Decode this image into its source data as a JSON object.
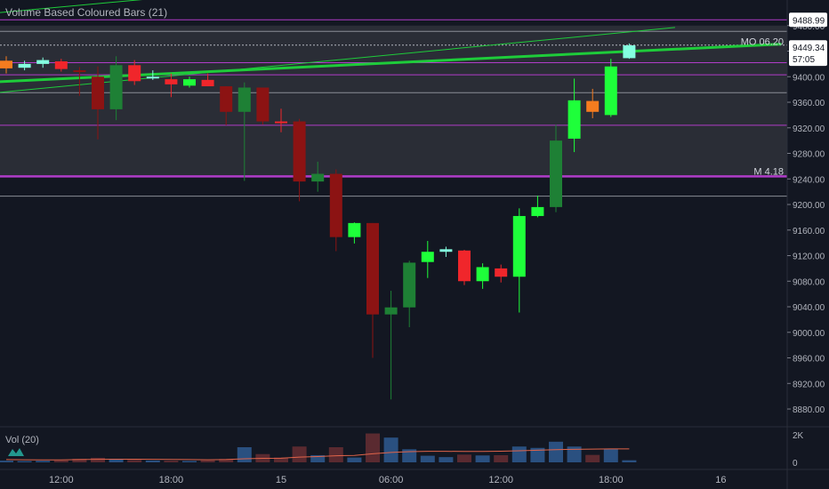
{
  "indicator_title": "Volume Based Coloured Bars (21)",
  "volume_title": "Vol (20)",
  "chart_data": {
    "type": "candlestick",
    "title": "Volume Based Coloured Bars (21)",
    "y_ticks": [
      8880,
      8920,
      8960,
      9000,
      9040,
      9080,
      9120,
      9160,
      9200,
      9240,
      9280,
      9320,
      9360,
      9400,
      9440,
      9480
    ],
    "y_tick_labels": [
      "8880.00",
      "8920.00",
      "8960.00",
      "9000.00",
      "9040.00",
      "9080.00",
      "9120.00",
      "9160.00",
      "9200.00",
      "9240.00",
      "9280.00",
      "9320.00",
      "9360.00",
      "9400.00",
      "9440.00",
      "9480.00"
    ],
    "ylim": [
      8855,
      9520
    ],
    "x_tick_labels": [
      {
        "label": "12:00",
        "bar": 3
      },
      {
        "label": "18:00",
        "bar": 9
      },
      {
        "label": "15",
        "bar": 15
      },
      {
        "label": "06:00",
        "bar": 21
      },
      {
        "label": "12:00",
        "bar": 27
      },
      {
        "label": "18:00",
        "bar": 33
      },
      {
        "label": "16",
        "bar": 39
      }
    ],
    "candles": [
      {
        "o": 9425,
        "h": 9432,
        "l": 9405,
        "c": 9413,
        "color": "#f57c1f"
      },
      {
        "o": 9420,
        "h": 9425,
        "l": 9410,
        "c": 9414,
        "color": "#84ffe0"
      },
      {
        "o": 9420,
        "h": 9430,
        "l": 9414,
        "c": 9426,
        "color": "#84ffe0"
      },
      {
        "o": 9424,
        "h": 9428,
        "l": 9408,
        "c": 9412,
        "color": "#f0262b"
      },
      {
        "o": 9410,
        "h": 9415,
        "l": 9370,
        "c": 9408,
        "color": "#8c1313"
      },
      {
        "o": 9400,
        "h": 9416,
        "l": 9302,
        "c": 9349,
        "color": "#8c1313"
      },
      {
        "o": 9349,
        "h": 9432,
        "l": 9332,
        "c": 9418,
        "color": "#1e8035"
      },
      {
        "o": 9418,
        "h": 9426,
        "l": 9387,
        "c": 9393,
        "color": "#f0262b"
      },
      {
        "o": 9400,
        "h": 9410,
        "l": 9395,
        "c": 9398,
        "color": "#84ffe0"
      },
      {
        "o": 9396,
        "h": 9405,
        "l": 9368,
        "c": 9388,
        "color": "#f0262b"
      },
      {
        "o": 9386,
        "h": 9400,
        "l": 9383,
        "c": 9396,
        "color": "#1eff3a"
      },
      {
        "o": 9395,
        "h": 9405,
        "l": 9385,
        "c": 9385,
        "color": "#f0262b"
      },
      {
        "o": 9385,
        "h": 9385,
        "l": 9324,
        "c": 9345,
        "color": "#8c1313"
      },
      {
        "o": 9345,
        "h": 9391,
        "l": 9237,
        "c": 9383,
        "color": "#1e8035"
      },
      {
        "o": 9383,
        "h": 9382,
        "l": 9325,
        "c": 9330,
        "color": "#8c1313"
      },
      {
        "o": 9330,
        "h": 9350,
        "l": 9313,
        "c": 9328,
        "color": "#f0262b"
      },
      {
        "o": 9330,
        "h": 9334,
        "l": 9205,
        "c": 9236,
        "color": "#8c1313"
      },
      {
        "o": 9236,
        "h": 9267,
        "l": 9220,
        "c": 9248,
        "color": "#1e8035"
      },
      {
        "o": 9248,
        "h": 9255,
        "l": 9127,
        "c": 9149,
        "color": "#8c1313"
      },
      {
        "o": 9149,
        "h": 9172,
        "l": 9139,
        "c": 9171,
        "color": "#1eff3a"
      },
      {
        "o": 9171,
        "h": 9171,
        "l": 8960,
        "c": 9028,
        "color": "#8c1313"
      },
      {
        "o": 9028,
        "h": 9065,
        "l": 8895,
        "c": 9039,
        "color": "#1e8035"
      },
      {
        "o": 9039,
        "h": 9112,
        "l": 9008,
        "c": 9109,
        "color": "#1e8035"
      },
      {
        "o": 9110,
        "h": 9143,
        "l": 9085,
        "c": 9126,
        "color": "#1eff3a"
      },
      {
        "o": 9126,
        "h": 9134,
        "l": 9118,
        "c": 9130,
        "color": "#84ffe0"
      },
      {
        "o": 9128,
        "h": 9129,
        "l": 9074,
        "c": 9080,
        "color": "#f0262b"
      },
      {
        "o": 9080,
        "h": 9108,
        "l": 9068,
        "c": 9102,
        "color": "#1eff3a"
      },
      {
        "o": 9100,
        "h": 9106,
        "l": 9078,
        "c": 9087,
        "color": "#f0262b"
      },
      {
        "o": 9087,
        "h": 9194,
        "l": 9031,
        "c": 9182,
        "color": "#1eff3a"
      },
      {
        "o": 9182,
        "h": 9214,
        "l": 9180,
        "c": 9196,
        "color": "#1eff3a"
      },
      {
        "o": 9196,
        "h": 9325,
        "l": 9188,
        "c": 9300,
        "color": "#1e8035"
      },
      {
        "o": 9303,
        "h": 9397,
        "l": 9282,
        "c": 9363,
        "color": "#1eff3a"
      },
      {
        "o": 9345,
        "h": 9381,
        "l": 9335,
        "c": 9362,
        "color": "#f57c1f"
      },
      {
        "o": 9340,
        "h": 9428,
        "l": 9337,
        "c": 9416,
        "color": "#1eff3a"
      },
      {
        "o": 9429,
        "h": 9452,
        "l": 9428,
        "c": 9449,
        "color": "#84ffe0"
      }
    ],
    "volume": [
      {
        "v": 120,
        "color": "#2a5080"
      },
      {
        "v": 90,
        "color": "#2a5080"
      },
      {
        "v": 110,
        "color": "#2a5080"
      },
      {
        "v": 140,
        "color": "#5a2a30"
      },
      {
        "v": 260,
        "color": "#5a2a30"
      },
      {
        "v": 330,
        "color": "#5a2a30"
      },
      {
        "v": 260,
        "color": "#2a5080"
      },
      {
        "v": 180,
        "color": "#5a2a30"
      },
      {
        "v": 130,
        "color": "#2a5080"
      },
      {
        "v": 120,
        "color": "#5a2a30"
      },
      {
        "v": 100,
        "color": "#2a5080"
      },
      {
        "v": 150,
        "color": "#5a2a30"
      },
      {
        "v": 250,
        "color": "#5a2a30"
      },
      {
        "v": 1100,
        "color": "#2a5080"
      },
      {
        "v": 600,
        "color": "#5a2a30"
      },
      {
        "v": 350,
        "color": "#5a2a30"
      },
      {
        "v": 1150,
        "color": "#5a2a30"
      },
      {
        "v": 520,
        "color": "#2a5080"
      },
      {
        "v": 1100,
        "color": "#5a2a30"
      },
      {
        "v": 350,
        "color": "#2a5080"
      },
      {
        "v": 2100,
        "color": "#5a2a30"
      },
      {
        "v": 1800,
        "color": "#2a5080"
      },
      {
        "v": 950,
        "color": "#2a5080"
      },
      {
        "v": 480,
        "color": "#2a5080"
      },
      {
        "v": 380,
        "color": "#2a5080"
      },
      {
        "v": 560,
        "color": "#5a2a30"
      },
      {
        "v": 500,
        "color": "#2a5080"
      },
      {
        "v": 520,
        "color": "#5a2a30"
      },
      {
        "v": 1150,
        "color": "#2a5080"
      },
      {
        "v": 1050,
        "color": "#2a5080"
      },
      {
        "v": 1500,
        "color": "#2a5080"
      },
      {
        "v": 1150,
        "color": "#2a5080"
      },
      {
        "v": 540,
        "color": "#5a2a30"
      },
      {
        "v": 1000,
        "color": "#2a5080"
      },
      {
        "v": 150,
        "color": "#2a5080"
      }
    ],
    "volume_ma": [
      200,
      190,
      180,
      180,
      200,
      220,
      230,
      230,
      220,
      210,
      200,
      190,
      200,
      260,
      290,
      300,
      380,
      420,
      480,
      500,
      620,
      720,
      780,
      800,
      800,
      790,
      790,
      810,
      840,
      880,
      920,
      950,
      960,
      980,
      980
    ],
    "volume_ticks": [
      {
        "label": "2K",
        "v": 2000
      },
      {
        "label": "0",
        "v": 0
      }
    ],
    "volume_ylim": [
      0,
      2200
    ],
    "horizontal_levels": [
      {
        "price": 9489,
        "color": "#b03cc8",
        "width": 1
      },
      {
        "price": 9471,
        "color": "#8a8d96",
        "width": 1
      },
      {
        "price": 9449.34,
        "color": "#b2b5be",
        "width": 1,
        "dotted": true
      },
      {
        "price": 9422,
        "color": "#b03cc8",
        "width": 1
      },
      {
        "price": 9403,
        "color": "#b03cc8",
        "width": 1
      },
      {
        "price": 9375,
        "color": "#8a8d96",
        "width": 1
      },
      {
        "price": 9324,
        "color": "#b03cc8",
        "width": 1
      },
      {
        "price": 9244,
        "color": "#b03cc8",
        "width": 2.5
      },
      {
        "price": 9213,
        "color": "#8a8d96",
        "width": 1
      }
    ],
    "shaded_zone": {
      "from": 9244,
      "to": 9480,
      "color": "#2a2d36"
    },
    "zone_labels": [
      {
        "text": "MO 06.20",
        "price": 9455
      },
      {
        "text": "M 4.18",
        "price": 9252
      }
    ],
    "price_labels": [
      {
        "text": "9488.99",
        "price": 9489,
        "bg": "#ffffff",
        "fg": "#131722"
      },
      {
        "text": "9449.34",
        "price": 9446,
        "bg": "#ffffff",
        "fg": "#131722"
      },
      {
        "text": "57:05",
        "price": 9428,
        "bg": "#ffffff",
        "fg": "#131722"
      }
    ],
    "trendlines": [
      {
        "x1": -0.5,
        "y1": 9392,
        "x2": 42.3,
        "y2": 9451,
        "color": "#1ecc3a",
        "width": 3
      },
      {
        "x1": -0.5,
        "y1": 9375,
        "x2": 36.5,
        "y2": 9477,
        "color": "#1ecc3a",
        "width": 1
      },
      {
        "x1": -0.5,
        "y1": 9500,
        "x2": 11,
        "y2": 9530,
        "color": "#1ecc3a",
        "width": 1
      }
    ]
  }
}
